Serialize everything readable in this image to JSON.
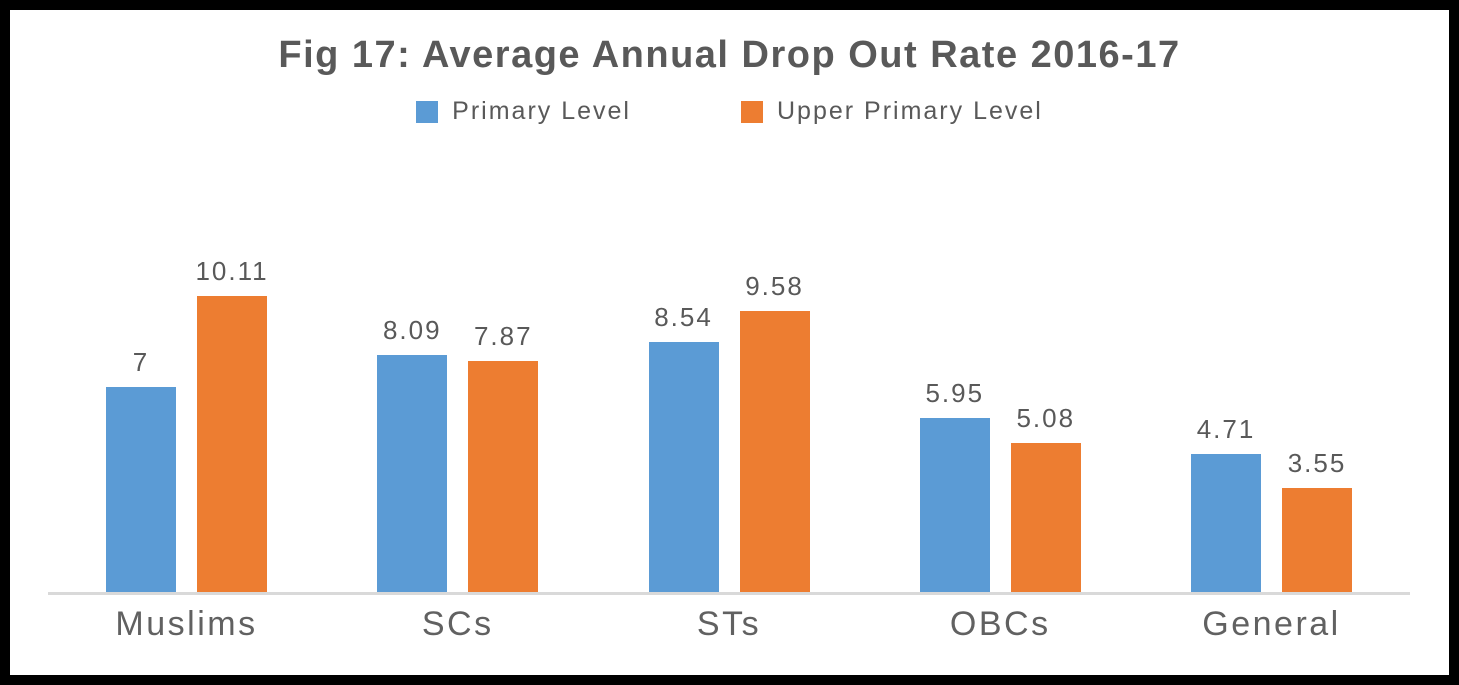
{
  "frame": {
    "background": "#ffffff",
    "border_color": "#000000"
  },
  "chart_data": {
    "type": "bar",
    "title": "Fig 17: Average Annual Drop Out Rate 2016-17",
    "categories": [
      "Muslims",
      "SCs",
      "STs",
      "OBCs",
      "General"
    ],
    "series": [
      {
        "name": "Primary Level",
        "color": "#5B9BD5",
        "values": [
          7,
          8.09,
          8.54,
          5.95,
          4.71
        ]
      },
      {
        "name": "Upper Primary Level",
        "color": "#ED7D31",
        "values": [
          10.11,
          7.87,
          9.58,
          5.08,
          3.55
        ]
      }
    ],
    "data_labels": [
      "7",
      "10.11",
      "8.09",
      "7.87",
      "8.54",
      "9.58",
      "5.95",
      "5.08",
      "4.71",
      "3.55"
    ],
    "legend_position": "top",
    "grid": false,
    "data_labels_shown": true,
    "axis_line_color": "#D9D9D9",
    "text_color": "#595959",
    "xlabel": "",
    "ylabel": "",
    "ylim": [
      0,
      12
    ]
  }
}
